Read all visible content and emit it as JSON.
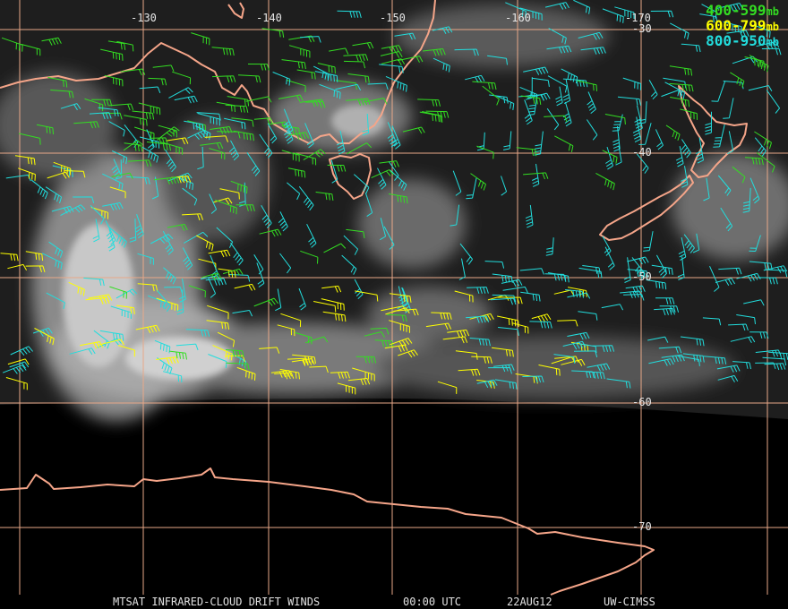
{
  "map": {
    "longitude_labels": [
      "-130",
      "-140",
      "-150",
      "-160",
      "-170"
    ],
    "latitude_labels": [
      "-30",
      "-40",
      "-50",
      "-60",
      "-70"
    ],
    "colors": {
      "grid": "#e8a888",
      "coastline": "#f5a589",
      "layer_400_599": "#33dd22",
      "layer_600_799": "#ffff00",
      "layer_800_950": "#22dddd"
    }
  },
  "legend": [
    {
      "range": "400-599",
      "unit": "mb",
      "color": "#33dd22"
    },
    {
      "range": "600-799",
      "unit": "mb",
      "color": "#ffff00"
    },
    {
      "range": "800-950",
      "unit": "mb",
      "color": "#22dddd"
    }
  ],
  "footer": {
    "product": "MTSAT INFRARED-CLOUD DRIFT WINDS",
    "time": "00:00 UTC",
    "date": "22AUG12",
    "source": "UW-CIMSS"
  }
}
